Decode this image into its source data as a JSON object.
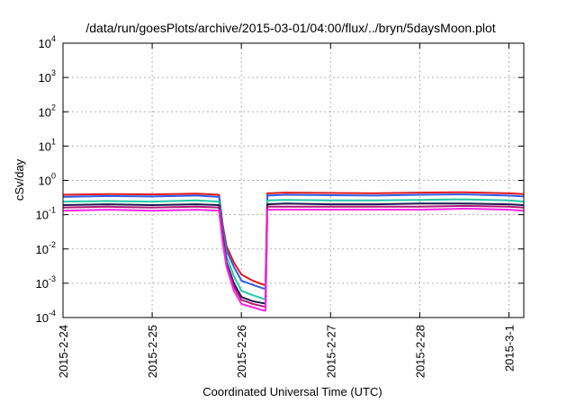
{
  "chart_data": {
    "type": "line",
    "title": "/data/run/goesPlots/archive/2015-03-01/04:00/flux/../bryn/5daysMoon.plot",
    "xlabel": "Coordinated Universal Time (UTC)",
    "ylabel": "cSv/day",
    "y_scale": "log",
    "ylim": [
      0.0001,
      10000
    ],
    "xlim": [
      "2015-02-24 00:00",
      "2015-03-01 04:00"
    ],
    "grid": true,
    "legend": "none",
    "x_ticks": [
      "2015-2-24",
      "2015-2-25",
      "2015-2-26",
      "2015-2-27",
      "2015-2-28",
      "2015-3-1"
    ],
    "y_ticks": [
      {
        "base": "10",
        "exp": "-4",
        "value": 0.0001
      },
      {
        "base": "10",
        "exp": "-3",
        "value": 0.001
      },
      {
        "base": "10",
        "exp": "-2",
        "value": 0.01
      },
      {
        "base": "10",
        "exp": "-1",
        "value": 0.1
      },
      {
        "base": "10",
        "exp": "0",
        "value": 1
      },
      {
        "base": "10",
        "exp": "1",
        "value": 10
      },
      {
        "base": "10",
        "exp": "2",
        "value": 100
      },
      {
        "base": "10",
        "exp": "3",
        "value": 1000
      },
      {
        "base": "10",
        "exp": "4",
        "value": 10000
      }
    ],
    "x": [
      "2015-02-24 00:00",
      "2015-02-24 12:00",
      "2015-02-25 00:00",
      "2015-02-25 12:00",
      "2015-02-25 18:00",
      "2015-02-25 19:00",
      "2015-02-25 20:00",
      "2015-02-25 22:00",
      "2015-02-26 00:00",
      "2015-02-26 03:00",
      "2015-02-26 06:00",
      "2015-02-26 06:30",
      "2015-02-26 07:00",
      "2015-02-26 12:00",
      "2015-02-27 00:00",
      "2015-02-27 12:00",
      "2015-02-28 00:00",
      "2015-02-28 12:00",
      "2015-03-01 00:00",
      "2015-03-01 04:00"
    ],
    "series": [
      {
        "color": "#e41a1c",
        "values": [
          0.38,
          0.4,
          0.39,
          0.41,
          0.38,
          0.05,
          0.012,
          0.004,
          0.0018,
          0.0012,
          0.0009,
          0.0009,
          0.42,
          0.44,
          0.43,
          0.42,
          0.44,
          0.45,
          0.42,
          0.4
        ]
      },
      {
        "color": "#2f5fe8",
        "values": [
          0.33,
          0.35,
          0.34,
          0.36,
          0.33,
          0.04,
          0.009,
          0.003,
          0.0012,
          0.0009,
          0.0007,
          0.0007,
          0.36,
          0.38,
          0.37,
          0.36,
          0.38,
          0.39,
          0.36,
          0.34
        ]
      },
      {
        "color": "#20c9a6",
        "values": [
          0.24,
          0.25,
          0.24,
          0.26,
          0.24,
          0.03,
          0.006,
          0.0016,
          0.0006,
          0.00045,
          0.00035,
          0.00035,
          0.26,
          0.27,
          0.26,
          0.26,
          0.27,
          0.28,
          0.26,
          0.24
        ]
      },
      {
        "color": "#1a1a4a",
        "values": [
          0.19,
          0.2,
          0.19,
          0.2,
          0.19,
          0.025,
          0.004,
          0.001,
          0.0004,
          0.0003,
          0.00026,
          0.00026,
          0.2,
          0.21,
          0.2,
          0.2,
          0.21,
          0.21,
          0.2,
          0.19
        ]
      },
      {
        "color": "#b0187a",
        "values": [
          0.16,
          0.17,
          0.16,
          0.17,
          0.16,
          0.02,
          0.0035,
          0.0008,
          0.00033,
          0.00025,
          0.00021,
          0.00021,
          0.17,
          0.17,
          0.17,
          0.17,
          0.17,
          0.18,
          0.17,
          0.16
        ]
      },
      {
        "color": "#ff22ee",
        "values": [
          0.13,
          0.14,
          0.13,
          0.14,
          0.13,
          0.015,
          0.003,
          0.0006,
          0.00025,
          0.0002,
          0.00016,
          0.00016,
          0.14,
          0.14,
          0.14,
          0.14,
          0.14,
          0.15,
          0.14,
          0.13
        ]
      }
    ]
  }
}
